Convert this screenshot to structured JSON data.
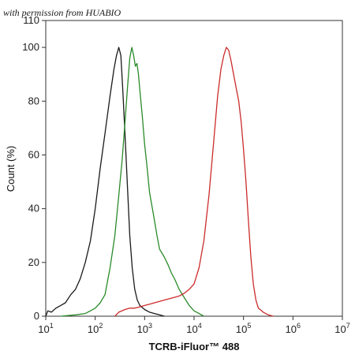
{
  "watermark": "with permission from HUABIO",
  "chart_data": {
    "type": "line",
    "xlabel": "TCRB-iFluor™ 488",
    "ylabel": "Count  (%)",
    "xscale": "log",
    "xlim": [
      10,
      10000000
    ],
    "ylim": [
      0,
      110
    ],
    "grid": false,
    "x_ticks": [
      {
        "value": 10,
        "base": "10",
        "exp": "1"
      },
      {
        "value": 100,
        "base": "10",
        "exp": "2"
      },
      {
        "value": 1000,
        "base": "10",
        "exp": "3"
      },
      {
        "value": 10000,
        "base": "10",
        "exp": "4"
      },
      {
        "value": 100000,
        "base": "10",
        "exp": "5"
      },
      {
        "value": 1000000,
        "base": "10",
        "exp": "6"
      },
      {
        "value": 10000000,
        "base": "10",
        "exp": "7"
      }
    ],
    "y_ticks": [
      0,
      20,
      40,
      60,
      80,
      100,
      110
    ],
    "series": [
      {
        "color": "#1a1a1a",
        "points": [
          [
            10,
            0
          ],
          [
            11,
            2
          ],
          [
            13,
            1.5
          ],
          [
            16,
            3
          ],
          [
            20,
            4
          ],
          [
            25,
            5
          ],
          [
            32,
            8
          ],
          [
            40,
            10
          ],
          [
            50,
            14
          ],
          [
            63,
            20
          ],
          [
            80,
            28
          ],
          [
            100,
            40
          ],
          [
            126,
            55
          ],
          [
            158,
            68
          ],
          [
            200,
            82
          ],
          [
            240,
            92
          ],
          [
            270,
            97
          ],
          [
            300,
            100
          ],
          [
            330,
            97
          ],
          [
            360,
            85
          ],
          [
            400,
            68
          ],
          [
            450,
            48
          ],
          [
            500,
            30
          ],
          [
            560,
            18
          ],
          [
            630,
            10
          ],
          [
            710,
            6
          ],
          [
            800,
            4
          ],
          [
            1000,
            2.5
          ],
          [
            1260,
            1.5
          ],
          [
            1580,
            1
          ],
          [
            2000,
            0.5
          ],
          [
            2500,
            0
          ]
        ]
      },
      {
        "color": "#2a8a2a",
        "points": [
          [
            20,
            0
          ],
          [
            40,
            0.5
          ],
          [
            63,
            1
          ],
          [
            80,
            2
          ],
          [
            100,
            3
          ],
          [
            126,
            5
          ],
          [
            158,
            8
          ],
          [
            200,
            18
          ],
          [
            250,
            30
          ],
          [
            300,
            45
          ],
          [
            350,
            58
          ],
          [
            400,
            72
          ],
          [
            450,
            85
          ],
          [
            500,
            96
          ],
          [
            550,
            100
          ],
          [
            600,
            97
          ],
          [
            650,
            93
          ],
          [
            700,
            94
          ],
          [
            750,
            90
          ],
          [
            800,
            84
          ],
          [
            900,
            74
          ],
          [
            1000,
            64
          ],
          [
            1100,
            57
          ],
          [
            1260,
            46
          ],
          [
            1500,
            38
          ],
          [
            1780,
            30
          ],
          [
            2000,
            25
          ],
          [
            2500,
            22
          ],
          [
            3000,
            19
          ],
          [
            3500,
            16
          ],
          [
            4000,
            14
          ],
          [
            5000,
            10
          ],
          [
            6300,
            7
          ],
          [
            8000,
            4
          ],
          [
            10000,
            2
          ],
          [
            12600,
            1
          ],
          [
            15800,
            0
          ]
        ]
      },
      {
        "color": "#cc2b2b",
        "points": [
          [
            250,
            0
          ],
          [
            300,
            1.5
          ],
          [
            400,
            2.5
          ],
          [
            500,
            3
          ],
          [
            630,
            3
          ],
          [
            800,
            3.5
          ],
          [
            1000,
            4
          ],
          [
            1260,
            4.5
          ],
          [
            1580,
            5
          ],
          [
            2000,
            5.5
          ],
          [
            2500,
            6
          ],
          [
            3200,
            6.5
          ],
          [
            4000,
            7
          ],
          [
            5000,
            7.5
          ],
          [
            6300,
            8.5
          ],
          [
            8000,
            10
          ],
          [
            10000,
            12
          ],
          [
            12600,
            18
          ],
          [
            15800,
            28
          ],
          [
            20000,
            45
          ],
          [
            25000,
            65
          ],
          [
            30000,
            82
          ],
          [
            35000,
            92
          ],
          [
            40000,
            97
          ],
          [
            45000,
            100
          ],
          [
            50000,
            99
          ],
          [
            56000,
            95
          ],
          [
            63000,
            90
          ],
          [
            71000,
            85
          ],
          [
            80000,
            80
          ],
          [
            90000,
            72
          ],
          [
            100000,
            62
          ],
          [
            112000,
            50
          ],
          [
            126000,
            35
          ],
          [
            141000,
            22
          ],
          [
            158000,
            12
          ],
          [
            178000,
            6
          ],
          [
            200000,
            3
          ],
          [
            251000,
            1.5
          ],
          [
            316000,
            0.5
          ],
          [
            400000,
            0
          ]
        ]
      }
    ]
  }
}
